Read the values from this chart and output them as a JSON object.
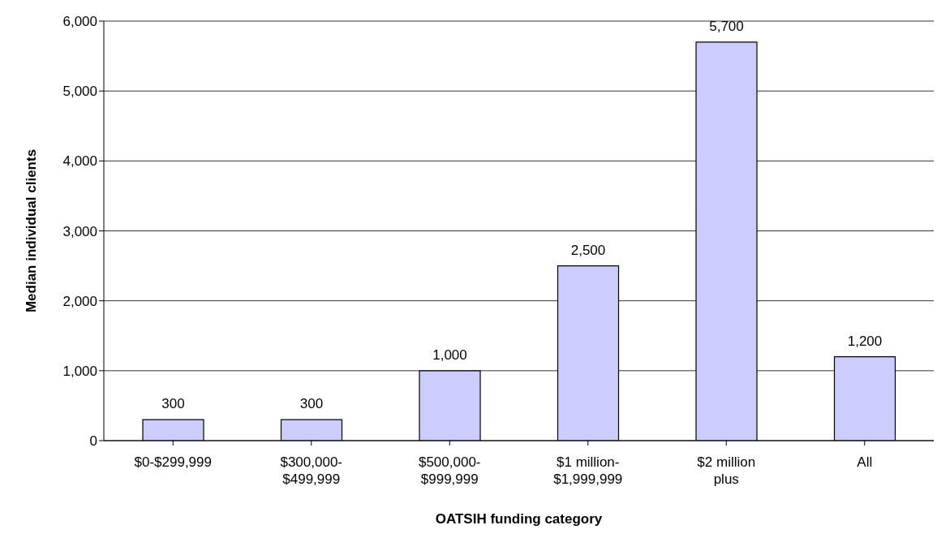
{
  "chart_data": {
    "type": "bar",
    "xlabel": "OATSIH funding category",
    "ylabel": "Median individual clients",
    "categories": [
      "$0-$299,999",
      "$300,000-$499,999",
      "$500,000-$999,999",
      "$1 million-$1,999,999",
      "$2 million plus",
      "All"
    ],
    "values": [
      300,
      300,
      1000,
      2500,
      5700,
      1200
    ],
    "color": "#ccccff",
    "ylim": [
      0,
      6000
    ],
    "yticks": [
      {
        "value": 0,
        "label": "0"
      },
      {
        "value": 1000,
        "label": "1,000"
      },
      {
        "value": 2000,
        "label": "2,000"
      },
      {
        "value": 3000,
        "label": "3,000"
      },
      {
        "value": 4000,
        "label": "4,000"
      },
      {
        "value": 5000,
        "label": "5,000"
      },
      {
        "value": 6000,
        "label": "6,000"
      }
    ],
    "value_labels": [
      "300",
      "300",
      "1,000",
      "2,500",
      "5,700",
      "1,200"
    ],
    "grid": "y",
    "legend": false
  }
}
